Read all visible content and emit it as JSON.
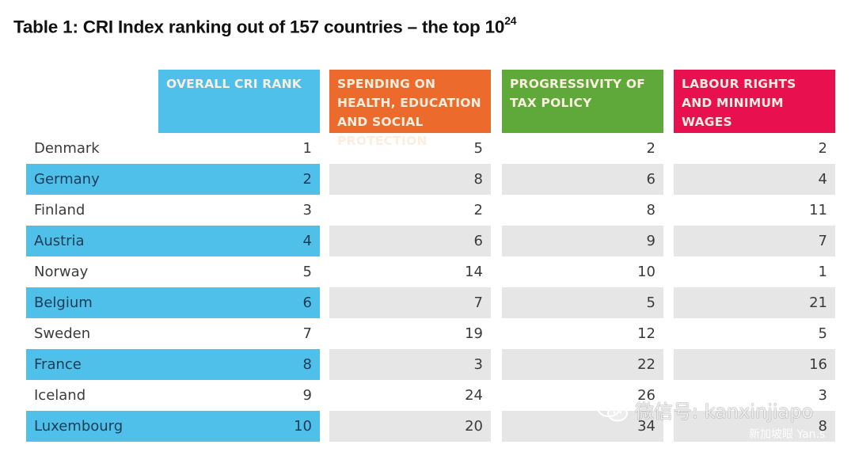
{
  "title": {
    "text": "Table 1: CRI Index ranking out of 157 countries – the top 10",
    "footnote": "24"
  },
  "colors": {
    "overall": "#4ec0ea",
    "spending": "#ec6a2c",
    "tax": "#5ea93a",
    "labour": "#e8104f",
    "row_shade": "#e6e6e6"
  },
  "headers": [
    "OVERALL CRI RANK",
    "SPENDING ON HEALTH, EDUCATION AND SOCIAL PROTECTION",
    "PROGRESSIVITY OF TAX POLICY",
    "LABOUR RIGHTS AND MINIMUM WAGES"
  ],
  "rows": [
    {
      "country": "Denmark",
      "overall": "1",
      "spending": "5",
      "tax": "2",
      "labour": "2"
    },
    {
      "country": "Germany",
      "overall": "2",
      "spending": "8",
      "tax": "6",
      "labour": "4"
    },
    {
      "country": "Finland",
      "overall": "3",
      "spending": "2",
      "tax": "8",
      "labour": "11"
    },
    {
      "country": "Austria",
      "overall": "4",
      "spending": "6",
      "tax": "9",
      "labour": "7"
    },
    {
      "country": "Norway",
      "overall": "5",
      "spending": "14",
      "tax": "10",
      "labour": "1"
    },
    {
      "country": "Belgium",
      "overall": "6",
      "spending": "7",
      "tax": "5",
      "labour": "21"
    },
    {
      "country": "Sweden",
      "overall": "7",
      "spending": "19",
      "tax": "12",
      "labour": "5"
    },
    {
      "country": "France",
      "overall": "8",
      "spending": "3",
      "tax": "22",
      "labour": "16"
    },
    {
      "country": "Iceland",
      "overall": "9",
      "spending": "24",
      "tax": "26",
      "labour": "3"
    },
    {
      "country": "Luxembourg",
      "overall": "10",
      "spending": "20",
      "tax": "34",
      "labour": "8"
    }
  ],
  "watermark": {
    "icon": "wechat-icon",
    "text": "微信号: kanxinjiapo",
    "sub": "新加坡眼 Yan.s"
  }
}
